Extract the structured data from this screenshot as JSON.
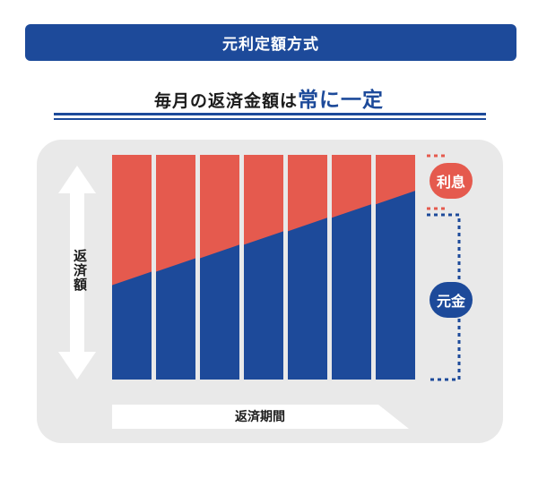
{
  "header": {
    "title": "元利定額方式"
  },
  "subtitle": {
    "prefix": "毎月の返済金額は",
    "emphasis": "常に一定"
  },
  "axes": {
    "y_label": "返済額",
    "x_label": "返済期間"
  },
  "legend": {
    "interest": "利息",
    "principal": "元金"
  },
  "colors": {
    "principal": "#1d4a9a",
    "interest": "#e55a4e",
    "panel": "#e9e9e9"
  },
  "chart_data": {
    "type": "bar",
    "stacked": true,
    "categories": [
      "",
      "",
      "",
      "",
      "",
      "",
      ""
    ],
    "series": [
      {
        "name": "元金",
        "values": [
          0.45,
          0.51,
          0.57,
          0.63,
          0.69,
          0.75,
          0.81
        ]
      },
      {
        "name": "利息",
        "values": [
          0.55,
          0.49,
          0.43,
          0.37,
          0.31,
          0.25,
          0.19
        ]
      }
    ],
    "ylim": [
      0,
      1
    ]
  }
}
